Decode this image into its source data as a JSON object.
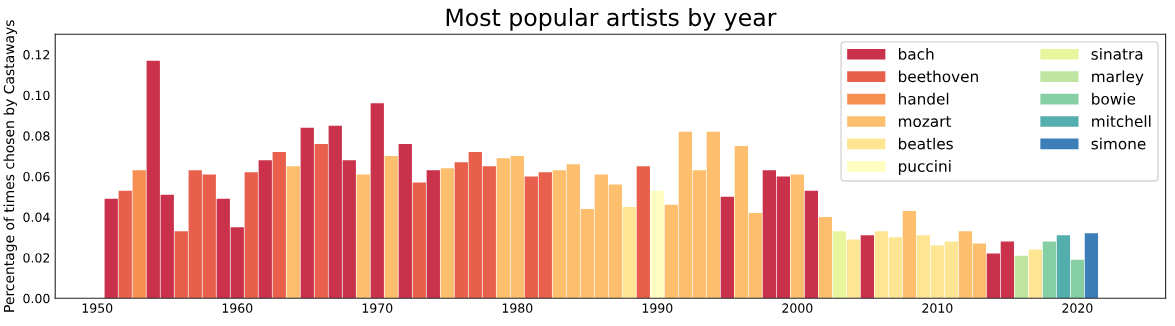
{
  "chart_data": {
    "type": "bar",
    "title": "Most popular artists by year",
    "ylabel": "Percentage of times chosen by Castaways",
    "xlim": [
      1947,
      2026.3
    ],
    "xticks": [
      1950,
      1960,
      1970,
      1980,
      1990,
      2000,
      2010,
      2020
    ],
    "ylim": [
      0,
      0.13
    ],
    "yticks": [
      {
        "value": 0,
        "label": "0.00"
      },
      {
        "value": 0.02,
        "label": "0.02"
      },
      {
        "value": 0.04,
        "label": "0.04"
      },
      {
        "value": 0.06,
        "label": "0.06"
      },
      {
        "value": 0.08,
        "label": "0.08"
      },
      {
        "value": 0.1,
        "label": "0.10"
      },
      {
        "value": 0.12,
        "label": "0.12"
      }
    ],
    "grid": false,
    "legend": "top right",
    "series": [
      {
        "name": "bach",
        "color": "#ca324c",
        "x": [
          1951,
          1954,
          1955,
          1959,
          1960,
          1962,
          1965,
          1967,
          1968,
          1970,
          1972,
          1974,
          1995,
          1998,
          1999,
          2001,
          2005,
          2014,
          2015
        ],
        "values": [
          0.049,
          0.117,
          0.051,
          0.049,
          0.035,
          0.068,
          0.084,
          0.085,
          0.068,
          0.096,
          0.076,
          0.063,
          0.05,
          0.063,
          0.06,
          0.053,
          0.031,
          0.022,
          0.028
        ]
      },
      {
        "name": "beethoven",
        "color": "#e8604c",
        "x": [
          1952,
          1956,
          1957,
          1958,
          1961,
          1963,
          1966,
          1973,
          1976,
          1977,
          1978,
          1981,
          1982,
          1989
        ],
        "values": [
          0.053,
          0.033,
          0.063,
          0.061,
          0.062,
          0.072,
          0.076,
          0.057,
          0.067,
          0.072,
          0.065,
          0.06,
          0.062,
          0.065
        ]
      },
      {
        "name": "handel",
        "color": "#f78f52",
        "x": [
          1953
        ],
        "values": [
          0.063
        ]
      },
      {
        "name": "mozart",
        "color": "#fdbe6e",
        "x": [
          1964,
          1969,
          1971,
          1975,
          1979,
          1980,
          1983,
          1984,
          1985,
          1986,
          1987,
          1991,
          1992,
          1993,
          1994,
          1996,
          1997,
          2000,
          2002,
          2008,
          2012,
          2013
        ],
        "values": [
          0.065,
          0.061,
          0.07,
          0.064,
          0.069,
          0.07,
          0.063,
          0.066,
          0.044,
          0.061,
          0.056,
          0.046,
          0.082,
          0.063,
          0.082,
          0.075,
          0.042,
          0.061,
          0.04,
          0.043,
          0.033,
          0.027
        ]
      },
      {
        "name": "beatles",
        "color": "#fee593",
        "x": [
          1988,
          2004,
          2006,
          2007,
          2009,
          2010,
          2011,
          2017
        ],
        "values": [
          0.045,
          0.029,
          0.033,
          0.03,
          0.031,
          0.026,
          0.028,
          0.024
        ]
      },
      {
        "name": "puccini",
        "color": "#fffec0",
        "x": [
          1990
        ],
        "values": [
          0.053
        ]
      },
      {
        "name": "sinatra",
        "color": "#e8f59c",
        "x": [
          2003
        ],
        "values": [
          0.033
        ]
      },
      {
        "name": "marley",
        "color": "#bfe5a0",
        "x": [
          2016
        ],
        "values": [
          0.021
        ]
      },
      {
        "name": "bowie",
        "color": "#86cfa5",
        "x": [
          2018,
          2020
        ],
        "values": [
          0.028,
          0.019
        ]
      },
      {
        "name": "mitchell",
        "color": "#54aead",
        "x": [
          2019
        ],
        "values": [
          0.031
        ]
      },
      {
        "name": "simone",
        "color": "#3b7eb8",
        "x": [
          2021
        ],
        "values": [
          0.032
        ]
      }
    ]
  }
}
